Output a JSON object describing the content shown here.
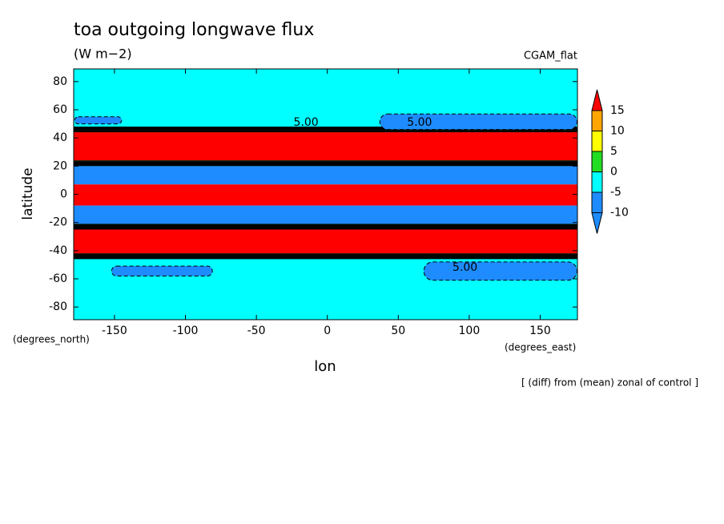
{
  "chart_data": {
    "type": "contour",
    "title": "toa outgoing longwave flux",
    "subtitle": "(W m−2)",
    "model": "CGAM_flat",
    "xlabel": "lon",
    "ylabel": "latitude",
    "xunits": "(degrees_east)",
    "yunits": "(degrees_north)",
    "footnote": "[ (diff) from (mean) zonal of control ]",
    "xlim": [
      -178.75,
      176.25
    ],
    "ylim": [
      -89,
      89
    ],
    "xticks": [
      -150,
      -100,
      -50,
      0,
      50,
      100,
      150
    ],
    "yticks": [
      -80,
      -60,
      -40,
      -20,
      0,
      20,
      40,
      60,
      80
    ],
    "levels": [
      -10,
      -5,
      0,
      5,
      10,
      15
    ],
    "colors": [
      "#1e8cff",
      "#1e8cff",
      "#00ffff",
      "#22dd22",
      "#ffff00",
      "#ffa500",
      "#ff0000"
    ],
    "bands": {
      "lat_from": [
        48,
        44,
        24,
        20,
        7,
        -8,
        -21,
        -25,
        -42,
        -46,
        -89
      ],
      "lat_to": [
        89,
        48,
        44,
        24,
        20,
        7,
        -8,
        -21,
        -25,
        -42,
        -46
      ],
      "values": [
        -2,
        3,
        20,
        3,
        -8,
        20,
        -8,
        3,
        20,
        3,
        -2
      ]
    },
    "patches": {
      "lon_from": [
        -178,
        37,
        -152,
        68
      ],
      "lon_to": [
        -145,
        176,
        -81,
        176
      ],
      "lat_from": [
        50,
        46,
        -58,
        -61
      ],
      "lat_to": [
        55,
        57,
        -51,
        -48
      ],
      "values": [
        -7,
        -7,
        -7,
        -7
      ]
    },
    "contour_labels": {
      "text": [
        "5.00",
        "5.00",
        "5.00"
      ],
      "lon": [
        -15,
        65,
        97
      ],
      "lat": [
        51,
        51,
        -52
      ]
    }
  }
}
